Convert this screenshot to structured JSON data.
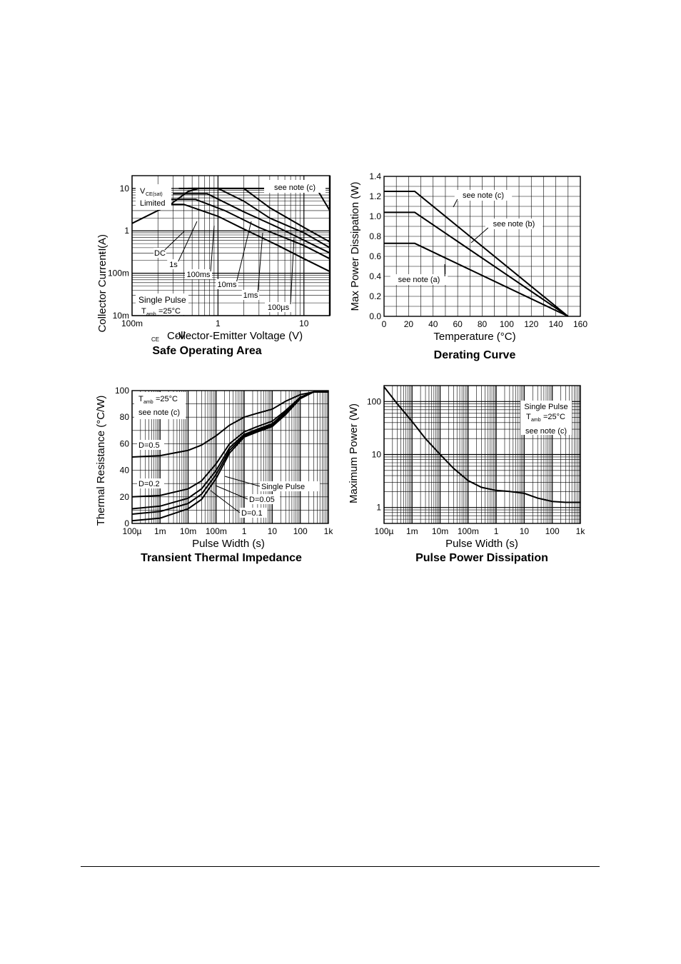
{
  "chart_data": [
    {
      "id": "soa",
      "type": "line",
      "title": "Safe Operating Area",
      "xlabel": "-V CE  Collector-Emitter Voltage (V)",
      "ylabel": "-I C  Collector Current (A)",
      "xscale": "log",
      "yscale": "log",
      "xlim": [
        0.1,
        20
      ],
      "ylim": [
        0.01,
        20
      ],
      "xticks": [
        {
          "v": 0.1,
          "t": "100m"
        },
        {
          "v": 1,
          "t": "1"
        },
        {
          "v": 10,
          "t": "10"
        }
      ],
      "yticks": [
        {
          "v": 0.01,
          "t": "10m"
        },
        {
          "v": 0.1,
          "t": "100m"
        },
        {
          "v": 1,
          "t": "1"
        },
        {
          "v": 10,
          "t": "10"
        }
      ],
      "grid": true,
      "series": [
        {
          "name": "VCE(sat) Limited",
          "points": [
            [
              0.1,
              1.5
            ],
            [
              0.28,
              4.2
            ],
            [
              0.45,
              8.5
            ],
            [
              0.6,
              10
            ]
          ]
        },
        {
          "name": "DC",
          "points": [
            [
              0.16,
              4.2
            ],
            [
              0.4,
              4.2
            ],
            [
              1,
              2.2
            ],
            [
              2,
              1.1
            ],
            [
              5,
              0.45
            ],
            [
              10,
              0.22
            ],
            [
              20,
              0.11
            ]
          ]
        },
        {
          "name": "1s",
          "points": [
            [
              0.2,
              5.5
            ],
            [
              0.55,
              5.5
            ],
            [
              1.2,
              3.0
            ],
            [
              3,
              1.2
            ],
            [
              10,
              0.45
            ],
            [
              20,
              0.22
            ]
          ]
        },
        {
          "name": "100ms",
          "points": [
            [
              0.3,
              7.5
            ],
            [
              0.75,
              7.5
            ],
            [
              2,
              2.8
            ],
            [
              5,
              1.2
            ],
            [
              20,
              0.3
            ]
          ]
        },
        {
          "name": "10ms",
          "points": [
            [
              0.35,
              10
            ],
            [
              1,
              10
            ],
            [
              2,
              5
            ],
            [
              4,
              2
            ],
            [
              10,
              0.9
            ],
            [
              20,
              0.4
            ]
          ]
        },
        {
          "name": "1ms",
          "points": [
            [
              0.45,
              10
            ],
            [
              2,
              10
            ],
            [
              4,
              3.5
            ],
            [
              10,
              1.2
            ],
            [
              20,
              0.55
            ]
          ]
        },
        {
          "name": "100µs",
          "points": [
            [
              0.5,
              10
            ],
            [
              14,
              10
            ],
            [
              20,
              3
            ]
          ]
        }
      ],
      "vline": 20,
      "annotations": [
        "see note (c)",
        "V CE(sat) Limited",
        "Single Pulse",
        "T amb =25°C"
      ]
    },
    {
      "id": "derating",
      "type": "line",
      "title": "Derating Curve",
      "xlabel": "Temperature (°C)",
      "ylabel": "Max Power Dissipation (W)",
      "xlim": [
        0,
        160
      ],
      "ylim": [
        0,
        1.4
      ],
      "xticks": [
        "0",
        "20",
        "40",
        "60",
        "80",
        "100",
        "120",
        "140",
        "160"
      ],
      "yticks": [
        "0.0",
        "0.2",
        "0.4",
        "0.6",
        "0.8",
        "1.0",
        "1.2",
        "1.4"
      ],
      "grid": true,
      "series": [
        {
          "name": "see note (c)",
          "points": [
            [
              0,
              1.25
            ],
            [
              25,
              1.25
            ],
            [
              150,
              0
            ]
          ]
        },
        {
          "name": "see note (b)",
          "points": [
            [
              0,
              1.04
            ],
            [
              25,
              1.04
            ],
            [
              150,
              0
            ]
          ]
        },
        {
          "name": "see note (a)",
          "points": [
            [
              0,
              0.73
            ],
            [
              25,
              0.73
            ],
            [
              150,
              0
            ]
          ]
        }
      ]
    },
    {
      "id": "transient",
      "type": "line",
      "title": "Transient Thermal Impedance",
      "xlabel": "Pulse Width (s)",
      "ylabel": "Thermal Resistance (°C/W)",
      "xscale": "log",
      "xlim": [
        0.0001,
        1000
      ],
      "ylim": [
        0,
        100
      ],
      "xticks": [
        {
          "v": 0.0001,
          "t": "100µ"
        },
        {
          "v": 0.001,
          "t": "1m"
        },
        {
          "v": 0.01,
          "t": "10m"
        },
        {
          "v": 0.1,
          "t": "100m"
        },
        {
          "v": 1,
          "t": "1"
        },
        {
          "v": 10,
          "t": "10"
        },
        {
          "v": 100,
          "t": "100"
        },
        {
          "v": 1000,
          "t": "1k"
        }
      ],
      "yticks": [
        "0",
        "20",
        "40",
        "60",
        "80",
        "100"
      ],
      "grid": true,
      "series": [
        {
          "name": "D=0.5",
          "points": [
            [
              0.0001,
              50
            ],
            [
              0.001,
              51
            ],
            [
              0.01,
              55
            ],
            [
              0.03,
              59
            ],
            [
              0.1,
              66
            ],
            [
              0.3,
              74
            ],
            [
              1,
              80
            ],
            [
              3,
              83
            ],
            [
              10,
              86
            ],
            [
              30,
              92
            ],
            [
              100,
              97
            ],
            [
              300,
              99
            ],
            [
              1000,
              99
            ]
          ]
        },
        {
          "name": "D=0.2",
          "points": [
            [
              0.0001,
              20
            ],
            [
              0.001,
              21
            ],
            [
              0.01,
              26
            ],
            [
              0.03,
              32
            ],
            [
              0.1,
              45
            ],
            [
              0.3,
              60
            ],
            [
              1,
              69
            ],
            [
              3,
              73
            ],
            [
              10,
              77
            ],
            [
              30,
              85
            ],
            [
              100,
              95
            ],
            [
              300,
              99
            ],
            [
              1000,
              99
            ]
          ]
        },
        {
          "name": "D=0.1",
          "points": [
            [
              0.0001,
              11
            ],
            [
              0.001,
              13
            ],
            [
              0.01,
              19
            ],
            [
              0.03,
              26
            ],
            [
              0.1,
              40
            ],
            [
              0.3,
              57
            ],
            [
              1,
              67
            ],
            [
              3,
              71
            ],
            [
              10,
              75
            ],
            [
              30,
              84
            ],
            [
              100,
              95
            ],
            [
              300,
              99
            ],
            [
              1000,
              99
            ]
          ]
        },
        {
          "name": "D=0.05",
          "points": [
            [
              0.0001,
              7
            ],
            [
              0.001,
              9
            ],
            [
              0.01,
              15
            ],
            [
              0.03,
              22
            ],
            [
              0.1,
              37
            ],
            [
              0.3,
              55
            ],
            [
              1,
              66
            ],
            [
              3,
              70
            ],
            [
              10,
              74
            ],
            [
              30,
              83
            ],
            [
              100,
              95
            ],
            [
              300,
              99
            ],
            [
              1000,
              99
            ]
          ]
        },
        {
          "name": "Single Pulse",
          "points": [
            [
              0.0001,
              2
            ],
            [
              0.001,
              4
            ],
            [
              0.01,
              11
            ],
            [
              0.03,
              18
            ],
            [
              0.1,
              34
            ],
            [
              0.3,
              53
            ],
            [
              1,
              65
            ],
            [
              3,
              69
            ],
            [
              10,
              73
            ],
            [
              30,
              82
            ],
            [
              100,
              94
            ],
            [
              300,
              99
            ],
            [
              1000,
              99
            ]
          ]
        }
      ],
      "annotations": [
        "T amb =25°C",
        "see note (c)"
      ]
    },
    {
      "id": "pulse",
      "type": "line",
      "title": "Pulse Power Dissipation",
      "xlabel": "Pulse Width (s)",
      "ylabel": "Maximum Power (W)",
      "xscale": "log",
      "yscale": "log",
      "xlim": [
        0.0001,
        1000
      ],
      "ylim": [
        0.5,
        200
      ],
      "xticks": [
        {
          "v": 0.0001,
          "t": "100µ"
        },
        {
          "v": 0.001,
          "t": "1m"
        },
        {
          "v": 0.01,
          "t": "10m"
        },
        {
          "v": 0.1,
          "t": "100m"
        },
        {
          "v": 1,
          "t": "1"
        },
        {
          "v": 10,
          "t": "10"
        },
        {
          "v": 100,
          "t": "100"
        },
        {
          "v": 1000,
          "t": "1k"
        }
      ],
      "yticks": [
        {
          "v": 1,
          "t": "1"
        },
        {
          "v": 10,
          "t": "10"
        },
        {
          "v": 100,
          "t": "100"
        }
      ],
      "grid": true,
      "series": [
        {
          "name": "Maximum Power",
          "points": [
            [
              0.0001,
              190
            ],
            [
              0.0003,
              90
            ],
            [
              0.001,
              42
            ],
            [
              0.003,
              20
            ],
            [
              0.01,
              10
            ],
            [
              0.03,
              5.5
            ],
            [
              0.1,
              3.2
            ],
            [
              0.3,
              2.4
            ],
            [
              1,
              2.1
            ],
            [
              3,
              2.0
            ],
            [
              10,
              1.85
            ],
            [
              30,
              1.5
            ],
            [
              100,
              1.3
            ],
            [
              300,
              1.25
            ],
            [
              1000,
              1.25
            ]
          ]
        }
      ],
      "annotations": [
        "Single Pulse",
        "T amb =25°C",
        "see note (c)"
      ]
    }
  ]
}
